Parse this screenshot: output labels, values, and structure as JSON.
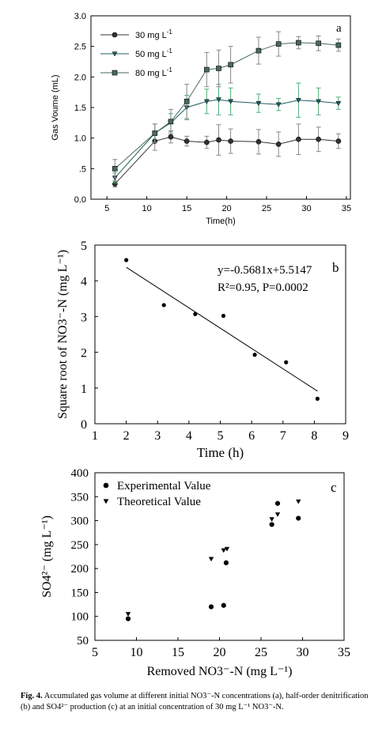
{
  "chart_data": [
    {
      "type": "line",
      "panel_label": "a",
      "xlabel": "Time(h)",
      "ylabel": "Gas Voume (mL)",
      "xlim": [
        3,
        35.5
      ],
      "ylim": [
        0,
        3.0
      ],
      "xticks": [
        "5",
        "10",
        "15",
        "20",
        "25",
        "30",
        "35"
      ],
      "yticks": [
        "0.0",
        ".5",
        "1.0",
        "1.5",
        "2.0",
        "2.5",
        "3.0"
      ],
      "x": [
        6,
        11,
        13,
        15,
        17.5,
        19,
        20.5,
        24,
        26.5,
        29,
        31.5,
        34
      ],
      "series": [
        {
          "name": "30 mg L-1",
          "marker": "circle",
          "color": "#333333",
          "values": [
            0.25,
            0.95,
            1.02,
            0.95,
            0.93,
            0.97,
            0.95,
            0.94,
            0.9,
            0.98,
            0.98,
            0.95
          ],
          "err": [
            0.05,
            0.15,
            0.1,
            0.08,
            0.1,
            0.25,
            0.2,
            0.2,
            0.2,
            0.25,
            0.2,
            0.12
          ]
        },
        {
          "name": "50 mg L-1",
          "marker": "triangle-down",
          "color": "#1f5f5f",
          "values": [
            0.35,
            1.08,
            1.25,
            1.5,
            1.6,
            1.63,
            1.6,
            1.57,
            1.55,
            1.62,
            1.6,
            1.57
          ],
          "err": [
            0.08,
            0.15,
            0.15,
            0.2,
            0.2,
            0.25,
            0.22,
            0.15,
            0.1,
            0.28,
            0.22,
            0.1
          ]
        },
        {
          "name": "80 mg L-1",
          "marker": "square",
          "color": "#4a6a5a",
          "values": [
            0.5,
            1.08,
            1.27,
            1.6,
            2.12,
            2.14,
            2.2,
            2.43,
            2.54,
            2.56,
            2.55,
            2.52
          ],
          "err": [
            0.15,
            0.15,
            0.2,
            0.28,
            0.28,
            0.3,
            0.3,
            0.22,
            0.2,
            0.1,
            0.12,
            0.1
          ]
        }
      ]
    },
    {
      "type": "scatter",
      "panel_label": "b",
      "xlabel": "Time (h)",
      "ylabel": "Square root of NO3⁻-N (mg L⁻¹)",
      "xlim": [
        1,
        9
      ],
      "ylim": [
        0,
        5
      ],
      "xticks": [
        "1",
        "2",
        "3",
        "4",
        "5",
        "6",
        "7",
        "8",
        "9"
      ],
      "yticks": [
        "0",
        "1",
        "2",
        "3",
        "4",
        "5"
      ],
      "annotation_line1": "y=-0.5681x+5.5147",
      "annotation_line2": "R²=0.95, P=0.0002",
      "points": {
        "x": [
          2,
          3.2,
          4.2,
          5.1,
          6.1,
          7.1,
          8.1
        ],
        "y": [
          4.58,
          3.32,
          3.07,
          3.02,
          1.93,
          1.72,
          0.7
        ]
      },
      "fit": {
        "slope": -0.5681,
        "intercept": 5.5147,
        "x_range": [
          2,
          8.1
        ]
      }
    },
    {
      "type": "scatter",
      "panel_label": "c",
      "xlabel": "Removed NO3⁻-N (mg L⁻¹)",
      "ylabel": "SO4²⁻ (mg L⁻¹)",
      "xlim": [
        5,
        35
      ],
      "ylim": [
        50,
        400
      ],
      "xticks": [
        "5",
        "10",
        "15",
        "20",
        "25",
        "30",
        "35"
      ],
      "yticks": [
        "50",
        "100",
        "150",
        "200",
        "250",
        "300",
        "350",
        "400"
      ],
      "series": [
        {
          "name": "Experimental Value",
          "marker": "circle",
          "x": [
            9,
            19,
            20.5,
            20.8,
            26.3,
            27,
            29.5
          ],
          "y": [
            95,
            120,
            123,
            212,
            292,
            336,
            305
          ]
        },
        {
          "name": "Theoretical Value",
          "marker": "triangle-down",
          "x": [
            9,
            19,
            20.5,
            20.9,
            26.3,
            27,
            29.5
          ],
          "y": [
            105,
            220,
            238,
            241,
            303,
            313,
            340
          ]
        }
      ]
    }
  ],
  "caption": {
    "label": "Fig. 4.",
    "text": "Accumulated gas volume at different initial NO3⁻-N concentrations (a), half-order denitrification (b) and SO4²⁻ production (c) at an initial concentration of 30 mg L⁻¹ NO3⁻-N."
  }
}
